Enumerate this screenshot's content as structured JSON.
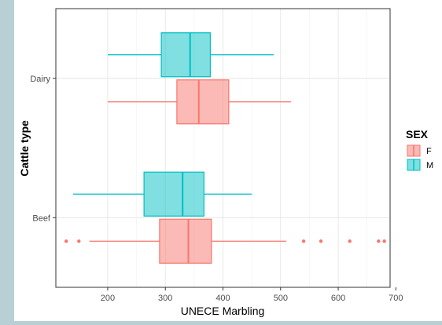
{
  "chart_data": {
    "type": "boxplot",
    "orientation": "horizontal",
    "xlabel": "UNECE Marbling",
    "ylabel": "Cattle type",
    "xlim": [
      110,
      690
    ],
    "xticks": [
      200,
      300,
      400,
      500,
      600,
      700
    ],
    "categories": [
      "Dairy",
      "Beef"
    ],
    "legend": {
      "title": "SEX",
      "position": "right",
      "entries": [
        {
          "label": "F",
          "color": "#f8766d"
        },
        {
          "label": "M",
          "color": "#00bfc4"
        }
      ]
    },
    "grid": true,
    "boxes": [
      {
        "category": "Dairy",
        "group": "M",
        "whisker_low": 200,
        "q1": 293,
        "median": 343,
        "q3": 378,
        "whisker_high": 488,
        "outliers": []
      },
      {
        "category": "Dairy",
        "group": "F",
        "whisker_low": 200,
        "q1": 320,
        "median": 358,
        "q3": 410,
        "whisker_high": 518,
        "outliers": []
      },
      {
        "category": "Beef",
        "group": "M",
        "whisker_low": 140,
        "q1": 263,
        "median": 330,
        "q3": 367,
        "whisker_high": 450,
        "outliers": []
      },
      {
        "category": "Beef",
        "group": "F",
        "whisker_low": 168,
        "q1": 290,
        "median": 340,
        "q3": 380,
        "whisker_high": 510,
        "outliers": [
          128,
          150,
          540,
          570,
          620,
          670,
          680
        ]
      }
    ]
  }
}
